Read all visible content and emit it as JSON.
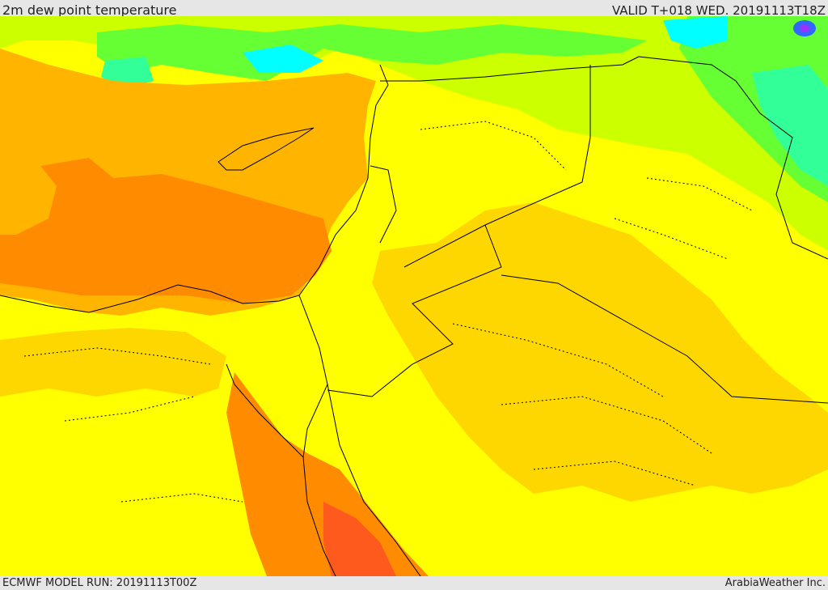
{
  "header": {
    "title": "2m dew point temperature",
    "valid": "VALID T+018 WED. 20191113T18Z"
  },
  "footer": {
    "model_run": "ECMWF MODEL RUN: 20191113T00Z",
    "credit": "ArabiaWeather Inc."
  },
  "colors": {
    "yellow": "#ffff00",
    "gold": "#ffd700",
    "amber": "#ffb400",
    "orange": "#ff8c00",
    "deep_orange": "#ff7a00",
    "red_orange": "#ff5a1e",
    "yellow_green": "#ccff00",
    "green": "#66ff33",
    "aqua": "#33ff99",
    "cyan": "#00ffff",
    "blue": "#3366ff",
    "purple": "#9933ff",
    "border": "#000000"
  }
}
